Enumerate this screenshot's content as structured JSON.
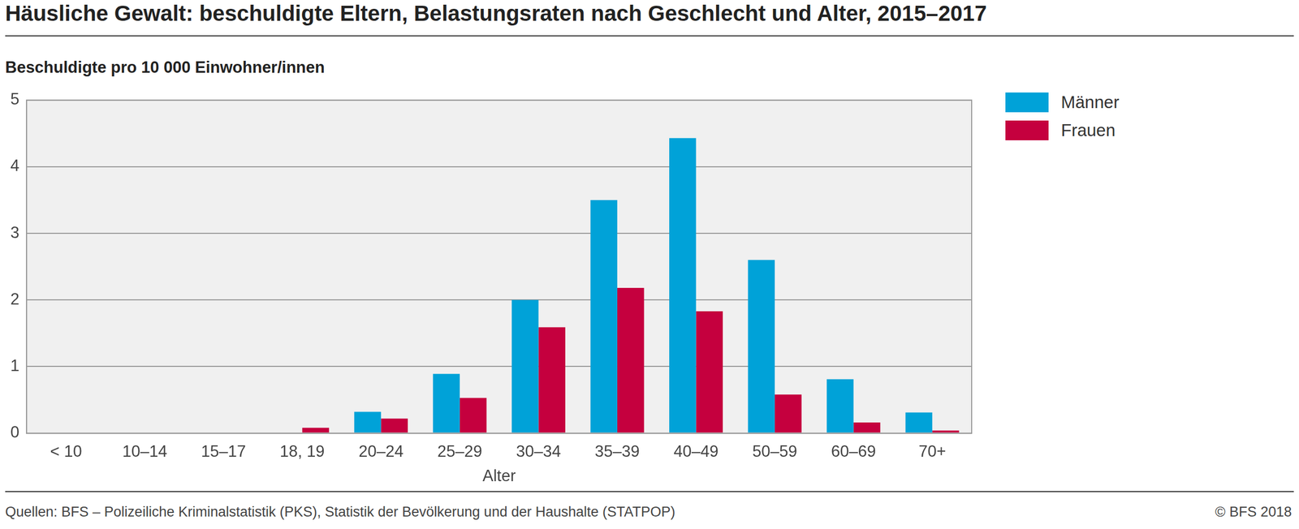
{
  "chart_data": {
    "type": "bar",
    "title": "Häusliche Gewalt: beschuldigte Eltern, Belastungsraten nach Geschlecht und Alter, 2015–2017",
    "y_label": "Beschuldigte pro 10 000 Einwohner/innen",
    "x_label": "Alter",
    "source": "Quellen: BFS – Polizeiliche Kriminalstatistik (PKS), Statistik der Bevölkerung und der Haushalte (STATPOP)",
    "credit": "© BFS 2018",
    "categories": [
      "< 10",
      "10–14",
      "15–17",
      "18, 19",
      "20–24",
      "25–29",
      "30–34",
      "35–39",
      "40–49",
      "50–59",
      "60–69",
      "70+"
    ],
    "series": [
      {
        "name": "Männer",
        "color": "#00a2d8",
        "values": [
          0,
          0,
          0,
          0,
          0.32,
          0.89,
          2.0,
          3.5,
          4.43,
          2.6,
          0.81,
          0.31
        ]
      },
      {
        "name": "Frauen",
        "color": "#c5003e",
        "values": [
          0,
          0,
          0,
          0.08,
          0.22,
          0.53,
          1.59,
          2.18,
          1.83,
          0.58,
          0.16,
          0.04
        ]
      }
    ],
    "ylim": [
      0,
      5
    ],
    "yticks": [
      0,
      1,
      2,
      3,
      4,
      5
    ],
    "grid": true,
    "legend": "right"
  }
}
